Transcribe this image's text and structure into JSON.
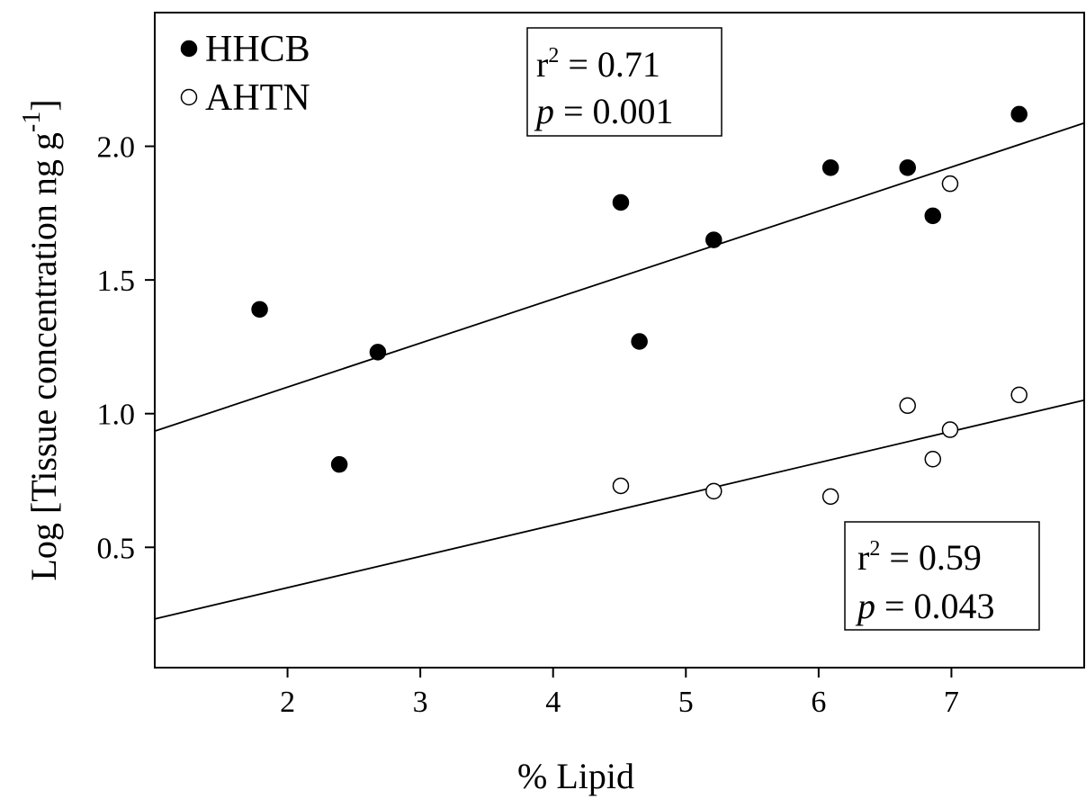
{
  "chart_data": {
    "type": "scatter",
    "xlabel": "% Lipid",
    "ylabel_main": "Log [Tissue concentration ng g",
    "ylabel_sup": "-1",
    "ylabel_close": "]",
    "xlim": [
      1.0,
      8.0
    ],
    "ylim": [
      0.05,
      2.5
    ],
    "xticks": [
      "2",
      "3",
      "4",
      "5",
      "6",
      "7"
    ],
    "yticks": [
      "0.5",
      "1.0",
      "1.5",
      "2.0"
    ],
    "grid": false,
    "legend_position": "top-left",
    "series": [
      {
        "name": "HHCB",
        "marker": "filled-circle",
        "color": "#000000",
        "points": [
          [
            1.79,
            1.39
          ],
          [
            2.39,
            0.81
          ],
          [
            2.68,
            1.23
          ],
          [
            4.51,
            1.79
          ],
          [
            4.65,
            1.27
          ],
          [
            5.21,
            1.65
          ],
          [
            6.09,
            1.92
          ],
          [
            6.67,
            1.92
          ],
          [
            6.86,
            1.74
          ],
          [
            7.51,
            2.12
          ]
        ],
        "fit": {
          "intercept": 0.77,
          "slope": 0.1646
        },
        "stats": {
          "r2_label": "r",
          "r2_sup": "2",
          "r2_value": " = 0.71",
          "p_label": "p",
          "p_value": " = 0.001"
        }
      },
      {
        "name": "AHTN",
        "marker": "open-circle",
        "color": "#000000",
        "points": [
          [
            4.51,
            0.73
          ],
          [
            5.21,
            0.71
          ],
          [
            6.09,
            0.69
          ],
          [
            6.67,
            1.03
          ],
          [
            6.86,
            0.83
          ],
          [
            6.99,
            0.94
          ],
          [
            6.99,
            1.86
          ],
          [
            7.51,
            1.07
          ]
        ],
        "fit": {
          "intercept": 0.1152,
          "slope": 0.1169
        },
        "stats": {
          "r2_label": "r",
          "r2_sup": "2",
          "r2_value": " = 0.59",
          "p_label": "p",
          "p_value": " = 0.043"
        }
      }
    ]
  }
}
